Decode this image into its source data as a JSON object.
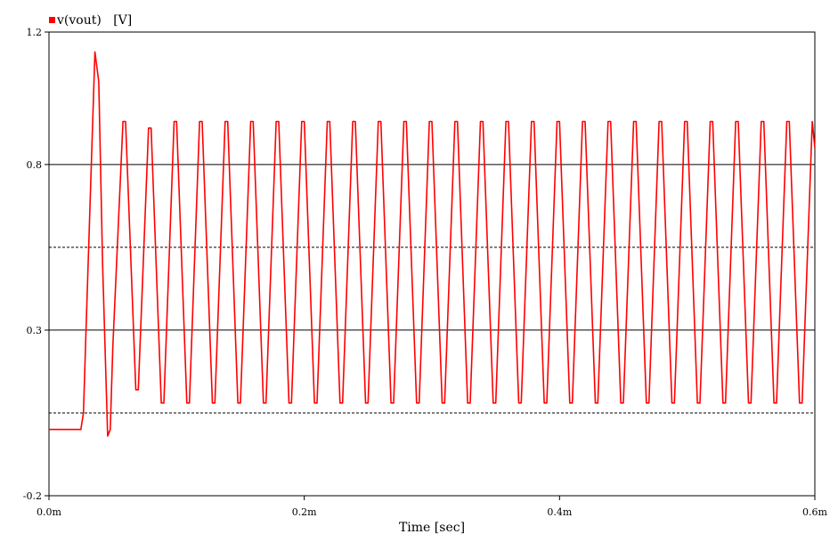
{
  "chart_data": {
    "type": "line",
    "title": "",
    "xlabel": "Time [sec]",
    "ylabel": "",
    "xlim": [
      0.0,
      0.0006
    ],
    "ylim": [
      -0.2,
      1.2
    ],
    "x_ticks": [
      {
        "value": 0.0,
        "label": "0.0m"
      },
      {
        "value": 0.0002,
        "label": "0.2m"
      },
      {
        "value": 0.0004,
        "label": "0.4m"
      },
      {
        "value": 0.0006,
        "label": "0.6m"
      }
    ],
    "y_ticks": [
      {
        "value": -0.2,
        "label": "-0.2"
      },
      {
        "value": 0.3,
        "label": "0.3"
      },
      {
        "value": 0.8,
        "label": "0.8"
      },
      {
        "value": 1.2,
        "label": "1.2"
      }
    ],
    "y_gridlines_solid": [
      0.3,
      0.8
    ],
    "y_gridlines_dashed": [
      0.05,
      0.55
    ],
    "legend": {
      "position": "top-left"
    },
    "series": [
      {
        "name": "v(vout)",
        "unit": "[V]",
        "color": "#ff0000",
        "x": [
          0,
          2.5e-05,
          2.7e-05,
          2.9e-05,
          3.6e-05,
          3.9e-05,
          4.2e-05,
          4.6e-05,
          4.8e-05,
          5e-05,
          5.8e-05,
          6e-05,
          6.8e-05,
          7e-05,
          7.8e-05,
          8e-05,
          8.8e-05,
          9e-05,
          9.8e-05,
          0.0001,
          0.000108,
          0.00011,
          0.000118,
          0.00012,
          0.000128,
          0.00013,
          0.000138,
          0.00014,
          0.000148,
          0.00015,
          0.000158,
          0.00016,
          0.000168,
          0.00017,
          0.000178,
          0.00018,
          0.000188,
          0.00019,
          0.000198,
          0.0002,
          0.000208,
          0.00021,
          0.000218,
          0.00022,
          0.000228,
          0.00023,
          0.000238,
          0.00024,
          0.000248,
          0.00025,
          0.000258,
          0.00026,
          0.000268,
          0.00027,
          0.000278,
          0.00028,
          0.000288,
          0.00029,
          0.000298,
          0.0003,
          0.000308,
          0.00031,
          0.000318,
          0.00032,
          0.000328,
          0.00033,
          0.000338,
          0.00034,
          0.000348,
          0.00035,
          0.000358,
          0.00036,
          0.000368,
          0.00037,
          0.000378,
          0.00038,
          0.000388,
          0.00039,
          0.000398,
          0.0004,
          0.000408,
          0.00041,
          0.000418,
          0.00042,
          0.000428,
          0.00043,
          0.000438,
          0.00044,
          0.000448,
          0.00045,
          0.000458,
          0.00046,
          0.000468,
          0.00047,
          0.000478,
          0.00048,
          0.000488,
          0.00049,
          0.000498,
          0.0005,
          0.000508,
          0.00051,
          0.000518,
          0.00052,
          0.000528,
          0.00053,
          0.000538,
          0.00054,
          0.000548,
          0.00055,
          0.000558,
          0.00056,
          0.000568,
          0.00057,
          0.000578,
          0.00058,
          0.000588,
          0.00059,
          0.000598,
          0.0006
        ],
        "y": [
          0.0,
          0.0,
          0.05,
          0.3,
          1.14,
          1.05,
          0.5,
          -0.02,
          0.0,
          0.25,
          0.93,
          0.93,
          0.12,
          0.12,
          0.91,
          0.91,
          0.08,
          0.08,
          0.93,
          0.93,
          0.08,
          0.08,
          0.93,
          0.93,
          0.08,
          0.08,
          0.93,
          0.93,
          0.08,
          0.08,
          0.93,
          0.93,
          0.08,
          0.08,
          0.93,
          0.93,
          0.08,
          0.08,
          0.93,
          0.93,
          0.08,
          0.08,
          0.93,
          0.93,
          0.08,
          0.08,
          0.93,
          0.93,
          0.08,
          0.08,
          0.93,
          0.93,
          0.08,
          0.08,
          0.93,
          0.93,
          0.08,
          0.08,
          0.93,
          0.93,
          0.08,
          0.08,
          0.93,
          0.93,
          0.08,
          0.08,
          0.93,
          0.93,
          0.08,
          0.08,
          0.93,
          0.93,
          0.08,
          0.08,
          0.93,
          0.93,
          0.08,
          0.08,
          0.93,
          0.93,
          0.08,
          0.08,
          0.93,
          0.93,
          0.08,
          0.08,
          0.93,
          0.93,
          0.08,
          0.08,
          0.93,
          0.93,
          0.08,
          0.08,
          0.93,
          0.93,
          0.08,
          0.08,
          0.93,
          0.93,
          0.08,
          0.08,
          0.93,
          0.93,
          0.08,
          0.08,
          0.93,
          0.93,
          0.08,
          0.08,
          0.93,
          0.93,
          0.08,
          0.08,
          0.93,
          0.93,
          0.08,
          0.08,
          0.93,
          0.85
        ]
      }
    ]
  }
}
